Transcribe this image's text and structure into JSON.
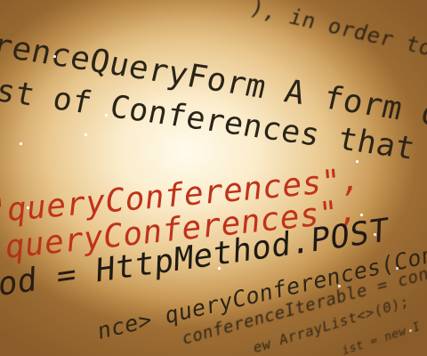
{
  "code_lines": [
    {
      "text": "), in order to r"
    },
    {
      "text": "renceQueryForm A form objec"
    },
    {
      "text": "st of Conferences that match"
    },
    {
      "text": "\"queryConferences\","
    },
    {
      "text": "queryConferences\","
    },
    {
      "text": "od = HttpMethod.POST"
    },
    {
      "text": "nce> queryConferences(Conferen"
    },
    {
      "text": "conferenceIterable = conf"
    },
    {
      "text": "ew ArrayList<>(0);"
    },
    {
      "text": "ist = new I"
    }
  ]
}
